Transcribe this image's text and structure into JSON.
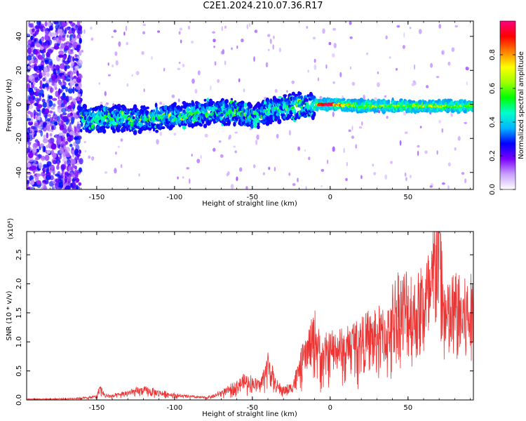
{
  "title": "C2E1.2024.210.07.36.R17",
  "chart_data": [
    {
      "type": "heatmap",
      "xlabel": "Height of straight line (km)",
      "ylabel": "Frequency (Hz)",
      "xlim": [
        -195,
        92
      ],
      "ylim": [
        -50,
        49
      ],
      "x_ticks": [
        -150,
        -100,
        -50,
        0,
        50
      ],
      "y_ticks": [
        -40,
        -20,
        0,
        20,
        40
      ],
      "colorbar": {
        "label": "Normalized spectral amplitude",
        "range": [
          0.0,
          1.0
        ],
        "ticks": [
          0.0,
          0.2,
          0.4,
          0.6,
          0.8
        ],
        "colors": [
          "#ffffff",
          "#c8a0ff",
          "#7a00ff",
          "#0000ff",
          "#00b4ff",
          "#00ffcc",
          "#00ff00",
          "#a0ff00",
          "#ffff00",
          "#ff8000",
          "#ff0000",
          "#ff0080"
        ]
      },
      "band_center": [
        {
          "x": -160,
          "y": -9
        },
        {
          "x": -140,
          "y": -8
        },
        {
          "x": -120,
          "y": -9
        },
        {
          "x": -100,
          "y": -7
        },
        {
          "x": -80,
          "y": -5
        },
        {
          "x": -60,
          "y": -4
        },
        {
          "x": -50,
          "y": -8
        },
        {
          "x": -40,
          "y": -4
        },
        {
          "x": -20,
          "y": -1
        },
        {
          "x": -10,
          "y": 0
        },
        {
          "x": 0,
          "y": 0
        },
        {
          "x": 20,
          "y": -1
        },
        {
          "x": 50,
          "y": -1
        },
        {
          "x": 70,
          "y": -1
        },
        {
          "x": 92,
          "y": -1
        }
      ]
    },
    {
      "type": "line",
      "xlabel": "Height of straight line (km)",
      "ylabel": "SNR (10 * v/v)",
      "scale_label": "(x10⁴)",
      "xlim": [
        -195,
        92
      ],
      "ylim": [
        0,
        2.9
      ],
      "x_ticks": [
        -150,
        -100,
        -50,
        0,
        50
      ],
      "y_ticks": [
        0.0,
        0.5,
        1.0,
        1.5,
        2.0,
        2.5
      ],
      "line_color": "#ee3333",
      "series": [
        {
          "x": [
            -195,
            -180,
            -165,
            -155,
            -150,
            -148,
            -145,
            -140,
            -130,
            -120,
            -110,
            -100,
            -95,
            -90,
            -85,
            -80,
            -75,
            -70,
            -65,
            -60,
            -55,
            -50,
            -45,
            -42,
            -40,
            -37,
            -35,
            -30,
            -25,
            -20,
            -15,
            -10,
            -5,
            0,
            5,
            10,
            15,
            20,
            25,
            30,
            35,
            40,
            45,
            50,
            55,
            60,
            65,
            70,
            72,
            75,
            80,
            85,
            92
          ],
          "y": [
            0.02,
            0.02,
            0.03,
            0.05,
            0.08,
            0.25,
            0.1,
            0.08,
            0.15,
            0.2,
            0.15,
            0.1,
            0.08,
            0.07,
            0.06,
            0.05,
            0.08,
            0.15,
            0.2,
            0.3,
            0.4,
            0.35,
            0.3,
            0.55,
            0.75,
            0.5,
            0.3,
            0.2,
            0.25,
            0.6,
            1.0,
            1.3,
            0.9,
            1.0,
            1.1,
            1.0,
            1.2,
            1.25,
            1.3,
            1.35,
            1.4,
            1.45,
            1.45,
            1.5,
            1.4,
            1.6,
            1.7,
            2.9,
            1.6,
            1.3,
            1.5,
            1.4,
            1.4
          ]
        }
      ]
    }
  ]
}
